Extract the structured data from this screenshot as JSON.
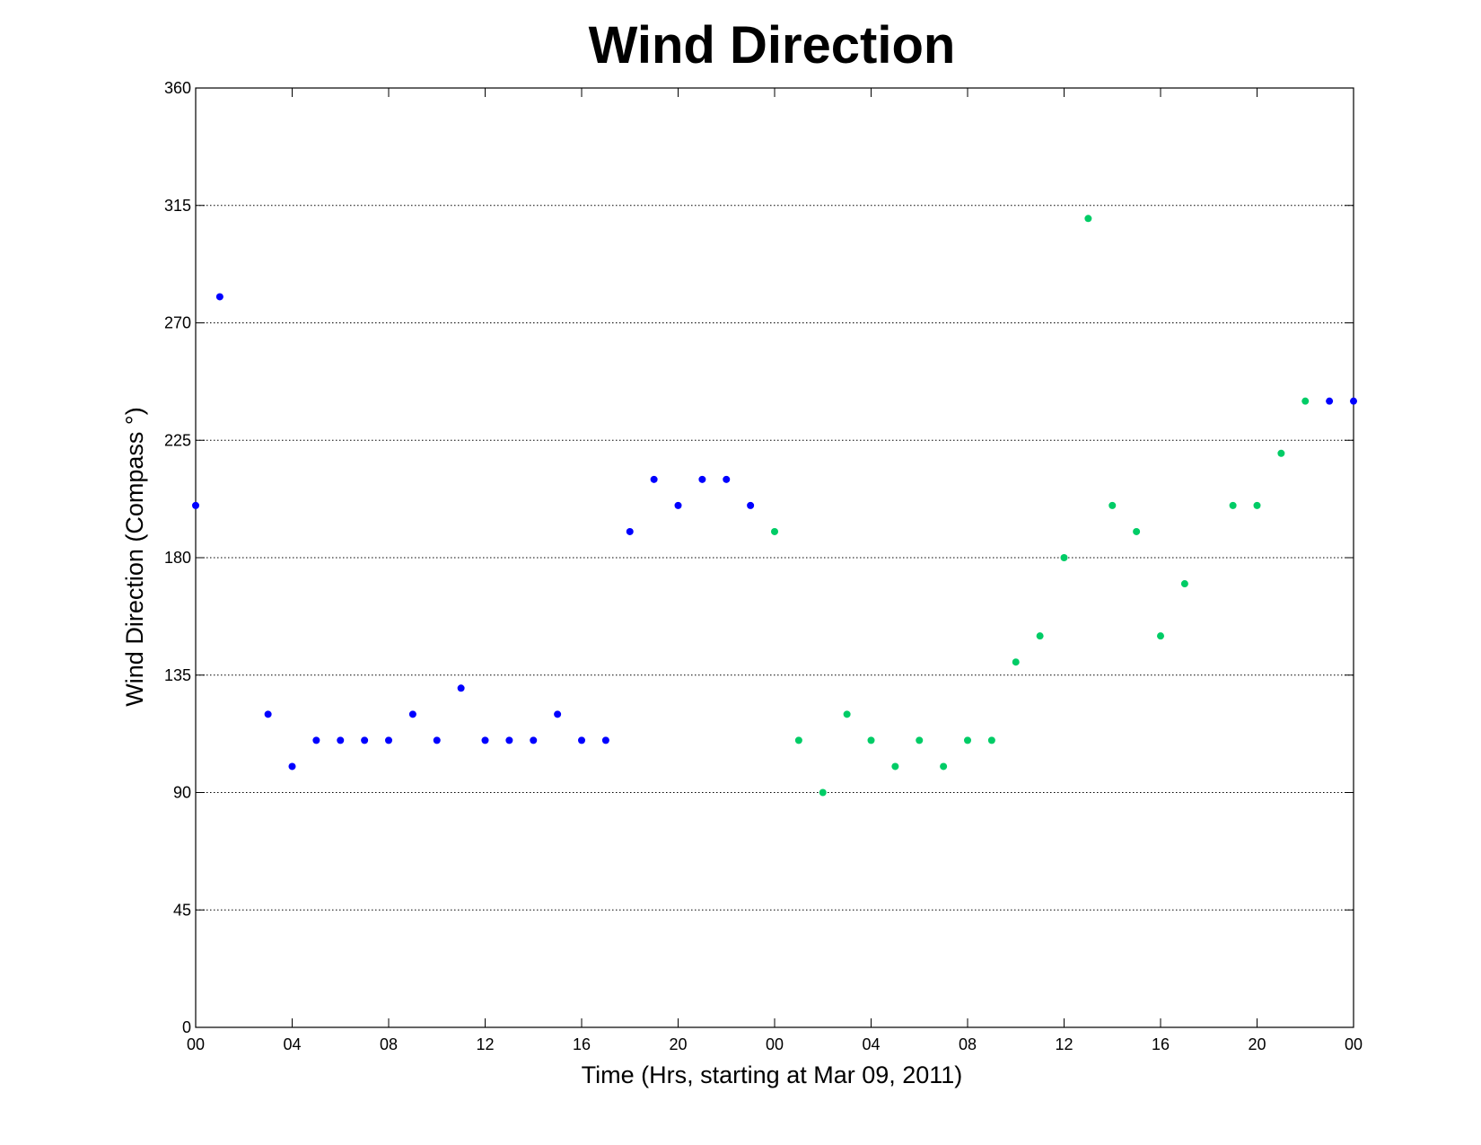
{
  "chart_data": {
    "type": "scatter",
    "title": "Wind Direction",
    "xlabel": "Time (Hrs, starting at Mar 09, 2011)",
    "ylabel": "Wind Direction (Compass  °)",
    "xlim": [
      0,
      48
    ],
    "ylim": [
      0,
      360
    ],
    "xticks": [
      0,
      4,
      8,
      12,
      16,
      20,
      24,
      28,
      32,
      36,
      40,
      44,
      48
    ],
    "xtick_labels": [
      "00",
      "04",
      "08",
      "12",
      "16",
      "20",
      "00",
      "04",
      "08",
      "12",
      "16",
      "20",
      "00"
    ],
    "yticks": [
      0,
      45,
      90,
      135,
      180,
      225,
      270,
      315,
      360
    ],
    "ytick_labels": [
      "0",
      "45",
      "90",
      "135",
      "180",
      "225",
      "270",
      "315",
      "360"
    ],
    "grid": "horizontal dotted",
    "legend": "none",
    "points": [
      {
        "x": 0,
        "y": 200,
        "color": "#0000ff"
      },
      {
        "x": 1,
        "y": 280,
        "color": "#0000ff"
      },
      {
        "x": 3,
        "y": 120,
        "color": "#0000ff"
      },
      {
        "x": 4,
        "y": 100,
        "color": "#0000ff"
      },
      {
        "x": 5,
        "y": 110,
        "color": "#0000ff"
      },
      {
        "x": 6,
        "y": 110,
        "color": "#0000ff"
      },
      {
        "x": 7,
        "y": 110,
        "color": "#0000ff"
      },
      {
        "x": 8,
        "y": 110,
        "color": "#0000ff"
      },
      {
        "x": 9,
        "y": 120,
        "color": "#0000ff"
      },
      {
        "x": 10,
        "y": 110,
        "color": "#0000ff"
      },
      {
        "x": 11,
        "y": 130,
        "color": "#0000ff"
      },
      {
        "x": 12,
        "y": 110,
        "color": "#0000ff"
      },
      {
        "x": 13,
        "y": 110,
        "color": "#0000ff"
      },
      {
        "x": 14,
        "y": 110,
        "color": "#0000ff"
      },
      {
        "x": 15,
        "y": 120,
        "color": "#0000ff"
      },
      {
        "x": 16,
        "y": 110,
        "color": "#0000ff"
      },
      {
        "x": 17,
        "y": 110,
        "color": "#0000ff"
      },
      {
        "x": 18,
        "y": 190,
        "color": "#0000ff"
      },
      {
        "x": 19,
        "y": 210,
        "color": "#0000ff"
      },
      {
        "x": 20,
        "y": 200,
        "color": "#0000ff"
      },
      {
        "x": 21,
        "y": 210,
        "color": "#0000ff"
      },
      {
        "x": 22,
        "y": 210,
        "color": "#0000ff"
      },
      {
        "x": 23,
        "y": 200,
        "color": "#0000ff"
      },
      {
        "x": 24,
        "y": 190,
        "color": "#00cc66"
      },
      {
        "x": 25,
        "y": 110,
        "color": "#00cc66"
      },
      {
        "x": 26,
        "y": 90,
        "color": "#00cc66"
      },
      {
        "x": 27,
        "y": 120,
        "color": "#00cc66"
      },
      {
        "x": 28,
        "y": 110,
        "color": "#00cc66"
      },
      {
        "x": 29,
        "y": 100,
        "color": "#00cc66"
      },
      {
        "x": 30,
        "y": 110,
        "color": "#00cc66"
      },
      {
        "x": 31,
        "y": 100,
        "color": "#00cc66"
      },
      {
        "x": 32,
        "y": 110,
        "color": "#00cc66"
      },
      {
        "x": 33,
        "y": 110,
        "color": "#00cc66"
      },
      {
        "x": 34,
        "y": 140,
        "color": "#00cc66"
      },
      {
        "x": 35,
        "y": 150,
        "color": "#00cc66"
      },
      {
        "x": 36,
        "y": 180,
        "color": "#00cc66"
      },
      {
        "x": 37,
        "y": 310,
        "color": "#00cc66"
      },
      {
        "x": 38,
        "y": 200,
        "color": "#00cc66"
      },
      {
        "x": 39,
        "y": 190,
        "color": "#00cc66"
      },
      {
        "x": 40,
        "y": 150,
        "color": "#00cc66"
      },
      {
        "x": 41,
        "y": 170,
        "color": "#00cc66"
      },
      {
        "x": 43,
        "y": 200,
        "color": "#00cc66"
      },
      {
        "x": 44,
        "y": 200,
        "color": "#00cc66"
      },
      {
        "x": 45,
        "y": 220,
        "color": "#00cc66"
      },
      {
        "x": 46,
        "y": 240,
        "color": "#00cc66"
      },
      {
        "x": 47,
        "y": 240,
        "color": "#0000ff"
      },
      {
        "x": 48,
        "y": 240,
        "color": "#0000ff"
      }
    ]
  }
}
